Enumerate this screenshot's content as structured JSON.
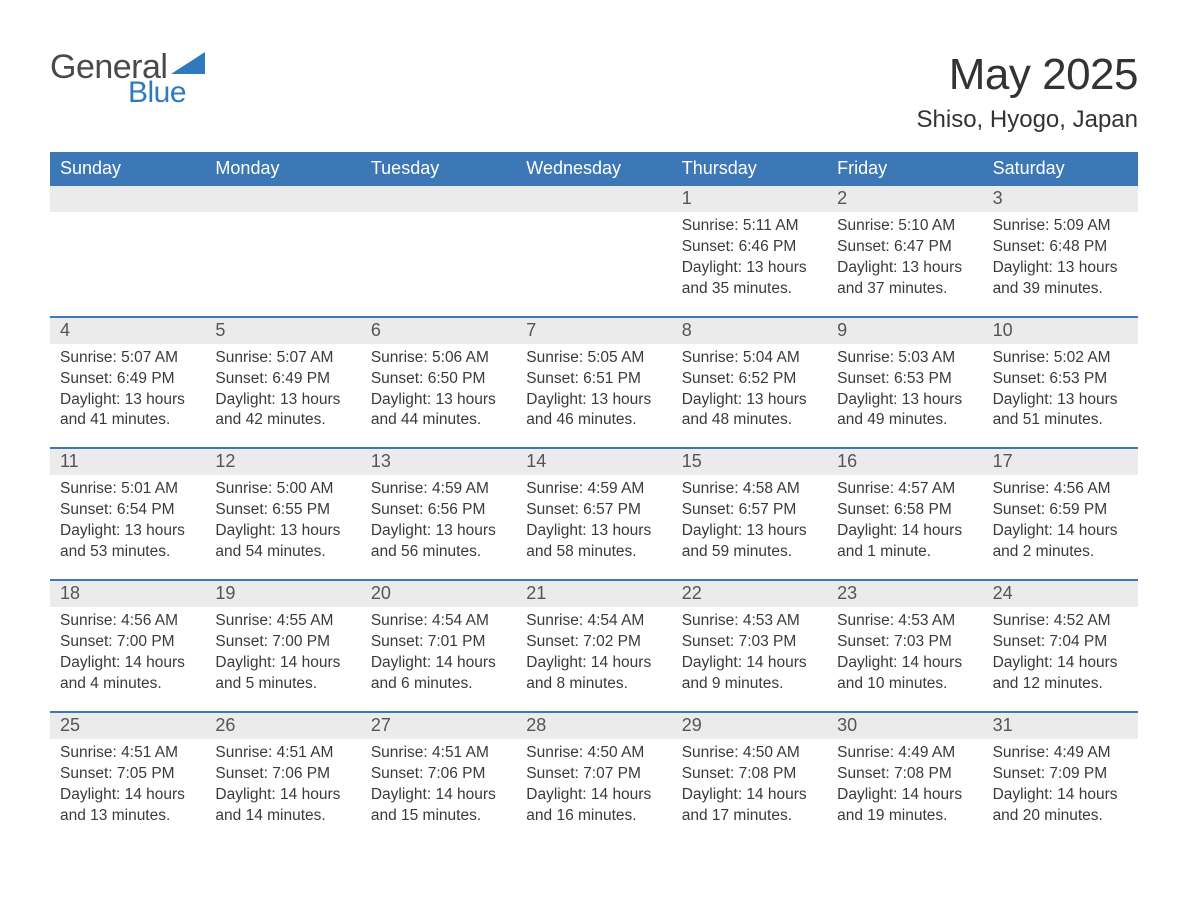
{
  "logo": {
    "text1": "General",
    "text2": "Blue"
  },
  "title": "May 2025",
  "subtitle": "Shiso, Hyogo, Japan",
  "colors": {
    "header_bg": "#3b78b5",
    "header_text": "#ffffff",
    "daynum_bg": "#ebebeb",
    "divider": "#3b78b5",
    "body_text": "#3a3a3a",
    "logo_gray": "#4a4a4a",
    "logo_blue": "#2f79bd"
  },
  "weekdays": [
    "Sunday",
    "Monday",
    "Tuesday",
    "Wednesday",
    "Thursday",
    "Friday",
    "Saturday"
  ],
  "weeks": [
    {
      "days": [
        null,
        null,
        null,
        null,
        {
          "n": "1",
          "sunrise": "Sunrise: 5:11 AM",
          "sunset": "Sunset: 6:46 PM",
          "day1": "Daylight: 13 hours",
          "day2": "and 35 minutes."
        },
        {
          "n": "2",
          "sunrise": "Sunrise: 5:10 AM",
          "sunset": "Sunset: 6:47 PM",
          "day1": "Daylight: 13 hours",
          "day2": "and 37 minutes."
        },
        {
          "n": "3",
          "sunrise": "Sunrise: 5:09 AM",
          "sunset": "Sunset: 6:48 PM",
          "day1": "Daylight: 13 hours",
          "day2": "and 39 minutes."
        }
      ]
    },
    {
      "days": [
        {
          "n": "4",
          "sunrise": "Sunrise: 5:07 AM",
          "sunset": "Sunset: 6:49 PM",
          "day1": "Daylight: 13 hours",
          "day2": "and 41 minutes."
        },
        {
          "n": "5",
          "sunrise": "Sunrise: 5:07 AM",
          "sunset": "Sunset: 6:49 PM",
          "day1": "Daylight: 13 hours",
          "day2": "and 42 minutes."
        },
        {
          "n": "6",
          "sunrise": "Sunrise: 5:06 AM",
          "sunset": "Sunset: 6:50 PM",
          "day1": "Daylight: 13 hours",
          "day2": "and 44 minutes."
        },
        {
          "n": "7",
          "sunrise": "Sunrise: 5:05 AM",
          "sunset": "Sunset: 6:51 PM",
          "day1": "Daylight: 13 hours",
          "day2": "and 46 minutes."
        },
        {
          "n": "8",
          "sunrise": "Sunrise: 5:04 AM",
          "sunset": "Sunset: 6:52 PM",
          "day1": "Daylight: 13 hours",
          "day2": "and 48 minutes."
        },
        {
          "n": "9",
          "sunrise": "Sunrise: 5:03 AM",
          "sunset": "Sunset: 6:53 PM",
          "day1": "Daylight: 13 hours",
          "day2": "and 49 minutes."
        },
        {
          "n": "10",
          "sunrise": "Sunrise: 5:02 AM",
          "sunset": "Sunset: 6:53 PM",
          "day1": "Daylight: 13 hours",
          "day2": "and 51 minutes."
        }
      ]
    },
    {
      "days": [
        {
          "n": "11",
          "sunrise": "Sunrise: 5:01 AM",
          "sunset": "Sunset: 6:54 PM",
          "day1": "Daylight: 13 hours",
          "day2": "and 53 minutes."
        },
        {
          "n": "12",
          "sunrise": "Sunrise: 5:00 AM",
          "sunset": "Sunset: 6:55 PM",
          "day1": "Daylight: 13 hours",
          "day2": "and 54 minutes."
        },
        {
          "n": "13",
          "sunrise": "Sunrise: 4:59 AM",
          "sunset": "Sunset: 6:56 PM",
          "day1": "Daylight: 13 hours",
          "day2": "and 56 minutes."
        },
        {
          "n": "14",
          "sunrise": "Sunrise: 4:59 AM",
          "sunset": "Sunset: 6:57 PM",
          "day1": "Daylight: 13 hours",
          "day2": "and 58 minutes."
        },
        {
          "n": "15",
          "sunrise": "Sunrise: 4:58 AM",
          "sunset": "Sunset: 6:57 PM",
          "day1": "Daylight: 13 hours",
          "day2": "and 59 minutes."
        },
        {
          "n": "16",
          "sunrise": "Sunrise: 4:57 AM",
          "sunset": "Sunset: 6:58 PM",
          "day1": "Daylight: 14 hours",
          "day2": "and 1 minute."
        },
        {
          "n": "17",
          "sunrise": "Sunrise: 4:56 AM",
          "sunset": "Sunset: 6:59 PM",
          "day1": "Daylight: 14 hours",
          "day2": "and 2 minutes."
        }
      ]
    },
    {
      "days": [
        {
          "n": "18",
          "sunrise": "Sunrise: 4:56 AM",
          "sunset": "Sunset: 7:00 PM",
          "day1": "Daylight: 14 hours",
          "day2": "and 4 minutes."
        },
        {
          "n": "19",
          "sunrise": "Sunrise: 4:55 AM",
          "sunset": "Sunset: 7:00 PM",
          "day1": "Daylight: 14 hours",
          "day2": "and 5 minutes."
        },
        {
          "n": "20",
          "sunrise": "Sunrise: 4:54 AM",
          "sunset": "Sunset: 7:01 PM",
          "day1": "Daylight: 14 hours",
          "day2": "and 6 minutes."
        },
        {
          "n": "21",
          "sunrise": "Sunrise: 4:54 AM",
          "sunset": "Sunset: 7:02 PM",
          "day1": "Daylight: 14 hours",
          "day2": "and 8 minutes."
        },
        {
          "n": "22",
          "sunrise": "Sunrise: 4:53 AM",
          "sunset": "Sunset: 7:03 PM",
          "day1": "Daylight: 14 hours",
          "day2": "and 9 minutes."
        },
        {
          "n": "23",
          "sunrise": "Sunrise: 4:53 AM",
          "sunset": "Sunset: 7:03 PM",
          "day1": "Daylight: 14 hours",
          "day2": "and 10 minutes."
        },
        {
          "n": "24",
          "sunrise": "Sunrise: 4:52 AM",
          "sunset": "Sunset: 7:04 PM",
          "day1": "Daylight: 14 hours",
          "day2": "and 12 minutes."
        }
      ]
    },
    {
      "days": [
        {
          "n": "25",
          "sunrise": "Sunrise: 4:51 AM",
          "sunset": "Sunset: 7:05 PM",
          "day1": "Daylight: 14 hours",
          "day2": "and 13 minutes."
        },
        {
          "n": "26",
          "sunrise": "Sunrise: 4:51 AM",
          "sunset": "Sunset: 7:06 PM",
          "day1": "Daylight: 14 hours",
          "day2": "and 14 minutes."
        },
        {
          "n": "27",
          "sunrise": "Sunrise: 4:51 AM",
          "sunset": "Sunset: 7:06 PM",
          "day1": "Daylight: 14 hours",
          "day2": "and 15 minutes."
        },
        {
          "n": "28",
          "sunrise": "Sunrise: 4:50 AM",
          "sunset": "Sunset: 7:07 PM",
          "day1": "Daylight: 14 hours",
          "day2": "and 16 minutes."
        },
        {
          "n": "29",
          "sunrise": "Sunrise: 4:50 AM",
          "sunset": "Sunset: 7:08 PM",
          "day1": "Daylight: 14 hours",
          "day2": "and 17 minutes."
        },
        {
          "n": "30",
          "sunrise": "Sunrise: 4:49 AM",
          "sunset": "Sunset: 7:08 PM",
          "day1": "Daylight: 14 hours",
          "day2": "and 19 minutes."
        },
        {
          "n": "31",
          "sunrise": "Sunrise: 4:49 AM",
          "sunset": "Sunset: 7:09 PM",
          "day1": "Daylight: 14 hours",
          "day2": "and 20 minutes."
        }
      ]
    }
  ]
}
